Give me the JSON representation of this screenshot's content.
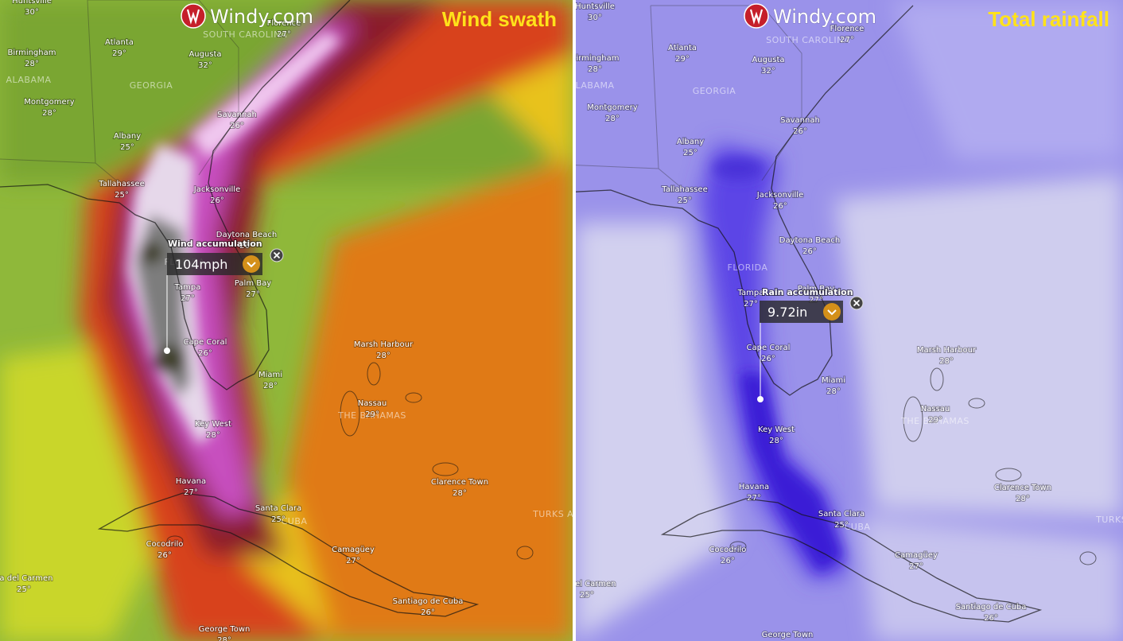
{
  "logo": "Windy.com",
  "panels": [
    {
      "title": "Wind swath",
      "popup_label": "Wind accumulation",
      "popup_value": "104mph"
    },
    {
      "title": "Total rainfall",
      "popup_label": "Rain accumulation",
      "popup_value": "9.72in"
    }
  ],
  "cities": [
    {
      "name": "Huntsville",
      "temp": "30°"
    },
    {
      "name": "Birmingham",
      "temp": "28°"
    },
    {
      "name": "Atlanta",
      "temp": "29°"
    },
    {
      "name": "Augusta",
      "temp": "32°"
    },
    {
      "name": "Florence",
      "temp": "27°"
    },
    {
      "name": "Montgomery",
      "temp": "28°"
    },
    {
      "name": "Albany",
      "temp": "25°"
    },
    {
      "name": "Savannah",
      "temp": "26°"
    },
    {
      "name": "Tallahassee",
      "temp": "25°"
    },
    {
      "name": "Jacksonville",
      "temp": "26°"
    },
    {
      "name": "Daytona Beach",
      "temp": "26°"
    },
    {
      "name": "Tampa",
      "temp": "27°"
    },
    {
      "name": "Palm Bay",
      "temp": "27°"
    },
    {
      "name": "Cape Coral",
      "temp": "26°"
    },
    {
      "name": "Marsh Harbour",
      "temp": "28°"
    },
    {
      "name": "Miami",
      "temp": "28°"
    },
    {
      "name": "Nassau",
      "temp": "29°"
    },
    {
      "name": "Key West",
      "temp": "28°"
    },
    {
      "name": "Havana",
      "temp": "27°"
    },
    {
      "name": "Clarence Town",
      "temp": "28°"
    },
    {
      "name": "Santa Clara",
      "temp": "25°"
    },
    {
      "name": "Camagüey",
      "temp": "27°"
    },
    {
      "name": "Cocodrilo",
      "temp": "26°"
    },
    {
      "name": "ya del Carmen",
      "temp": "25°"
    },
    {
      "name": "Santiago de Cuba",
      "temp": "26°"
    },
    {
      "name": "George Town",
      "temp": "28°"
    }
  ],
  "regions": [
    "ALABAMA",
    "GEORGIA",
    "SOUTH CAROLINA",
    "FLORIDA",
    "THE BAHAMAS",
    "CUBA",
    "TURKS AN"
  ]
}
